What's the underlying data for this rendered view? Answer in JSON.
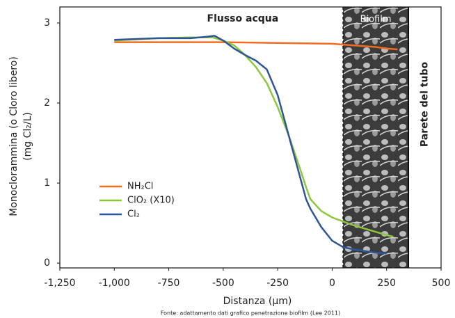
{
  "chart_data": {
    "type": "line",
    "x_label": "Distanza (µm)",
    "y_label": [
      "Monoclorammina (o Cloro libero)",
      "(mg Cl₂/L)"
    ],
    "source": "Fonte: adattamento dati grafico penetrazione biofilm (Lee 2011)",
    "xlim": [
      -1250,
      500
    ],
    "ylim": [
      -0.06,
      3.2
    ],
    "xticks": [
      {
        "value": -1250,
        "label": "-1,250"
      },
      {
        "value": -1000,
        "label": "-1,000"
      },
      -750,
      -500,
      -250,
      0,
      250,
      500
    ],
    "yticks": [
      0,
      1,
      2,
      3
    ],
    "grid": false,
    "regions": [
      {
        "label": "Flusso acqua",
        "x": [
          -1250,
          50
        ]
      },
      {
        "label": "Biofilm",
        "x": [
          50,
          350
        ]
      },
      {
        "label": "Parete del tubo",
        "x": [
          350,
          500
        ]
      }
    ],
    "series": [
      {
        "name": "NH₂Cl",
        "color": "#f26b21",
        "x": [
          -1000,
          -750,
          -500,
          -250,
          0,
          100,
          200,
          250,
          300
        ],
        "values": [
          2.76,
          2.76,
          2.76,
          2.75,
          2.74,
          2.72,
          2.7,
          2.68,
          2.67
        ]
      },
      {
        "name": "ClO₂ (X10)",
        "color": "#8dc63f",
        "x": [
          -1000,
          -800,
          -650,
          -550,
          -500,
          -450,
          -400,
          -350,
          -300,
          -250,
          -200,
          -150,
          -120,
          -100,
          -50,
          0,
          50,
          100,
          150,
          200,
          250,
          280
        ],
        "values": [
          2.78,
          2.81,
          2.82,
          2.82,
          2.78,
          2.72,
          2.6,
          2.45,
          2.25,
          1.95,
          1.6,
          1.2,
          0.95,
          0.8,
          0.65,
          0.57,
          0.52,
          0.47,
          0.43,
          0.39,
          0.35,
          0.33
        ]
      },
      {
        "name": "Cl₂",
        "color": "#2e5597",
        "x": [
          -1000,
          -800,
          -650,
          -570,
          -540,
          -500,
          -450,
          -400,
          -350,
          -300,
          -250,
          -200,
          -150,
          -120,
          -100,
          -50,
          0,
          50,
          100,
          200,
          250
        ],
        "values": [
          2.79,
          2.81,
          2.81,
          2.83,
          2.84,
          2.78,
          2.68,
          2.6,
          2.53,
          2.42,
          2.1,
          1.6,
          1.1,
          0.8,
          0.68,
          0.45,
          0.28,
          0.2,
          0.17,
          0.13,
          0.12
        ]
      }
    ]
  }
}
